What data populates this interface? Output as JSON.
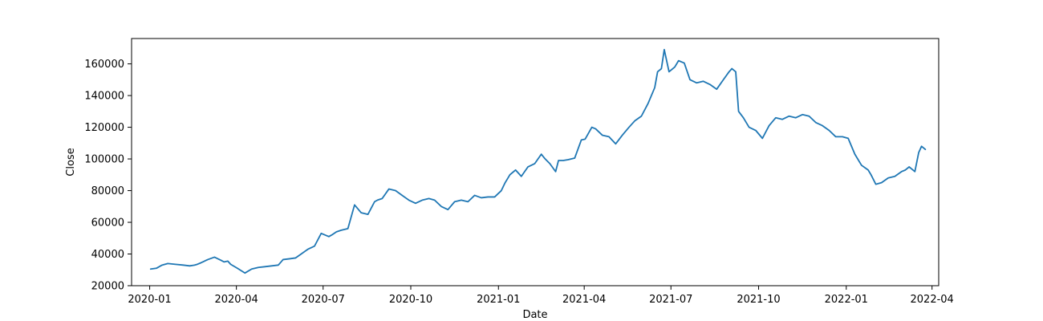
{
  "chart_data": {
    "type": "line",
    "title": "",
    "xlabel": "Date",
    "ylabel": "Close",
    "xlim": [
      "2019-12-13",
      "2022-04-08"
    ],
    "ylim": [
      20000,
      176000
    ],
    "grid": false,
    "legend": false,
    "colors": {
      "line": "#1f77b4",
      "axis": "#000000",
      "background": "#ffffff"
    },
    "x_ticks": [
      "2020-01",
      "2020-04",
      "2020-07",
      "2020-10",
      "2021-01",
      "2021-04",
      "2021-07",
      "2021-10",
      "2022-01",
      "2022-04"
    ],
    "y_ticks": [
      20000,
      40000,
      60000,
      80000,
      100000,
      120000,
      140000,
      160000
    ],
    "series": [
      {
        "x": [
          "2020-01-02",
          "2020-01-08",
          "2020-01-14",
          "2020-01-20",
          "2020-01-28",
          "2020-02-05",
          "2020-02-12",
          "2020-02-17",
          "2020-02-20",
          "2020-02-24",
          "2020-03-02",
          "2020-03-09",
          "2020-03-16",
          "2020-03-19",
          "2020-03-23",
          "2020-03-26",
          "2020-04-02",
          "2020-04-10",
          "2020-04-17",
          "2020-04-24",
          "2020-05-01",
          "2020-05-08",
          "2020-05-15",
          "2020-05-20",
          "2020-05-27",
          "2020-06-02",
          "2020-06-08",
          "2020-06-15",
          "2020-06-22",
          "2020-06-29",
          "2020-07-03",
          "2020-07-07",
          "2020-07-10",
          "2020-07-15",
          "2020-07-20",
          "2020-07-27",
          "2020-08-03",
          "2020-08-10",
          "2020-08-17",
          "2020-08-24",
          "2020-08-27",
          "2020-09-01",
          "2020-09-08",
          "2020-09-15",
          "2020-09-22",
          "2020-09-29",
          "2020-10-06",
          "2020-10-13",
          "2020-10-20",
          "2020-10-26",
          "2020-11-02",
          "2020-11-09",
          "2020-11-16",
          "2020-11-23",
          "2020-11-30",
          "2020-12-07",
          "2020-12-14",
          "2020-12-21",
          "2020-12-28",
          "2021-01-04",
          "2021-01-08",
          "2021-01-13",
          "2021-01-19",
          "2021-01-25",
          "2021-02-01",
          "2021-02-08",
          "2021-02-15",
          "2021-02-19",
          "2021-02-24",
          "2021-03-02",
          "2021-03-05",
          "2021-03-10",
          "2021-03-15",
          "2021-03-22",
          "2021-03-29",
          "2021-04-02",
          "2021-04-09",
          "2021-04-13",
          "2021-04-20",
          "2021-04-27",
          "2021-05-04",
          "2021-05-11",
          "2021-05-18",
          "2021-05-24",
          "2021-05-31",
          "2021-06-07",
          "2021-06-14",
          "2021-06-17",
          "2021-06-21",
          "2021-06-24",
          "2021-06-29",
          "2021-07-05",
          "2021-07-09",
          "2021-07-15",
          "2021-07-21",
          "2021-07-28",
          "2021-08-04",
          "2021-08-11",
          "2021-08-18",
          "2021-08-25",
          "2021-08-31",
          "2021-09-03",
          "2021-09-07",
          "2021-09-10",
          "2021-09-15",
          "2021-09-21",
          "2021-09-28",
          "2021-10-05",
          "2021-10-12",
          "2021-10-19",
          "2021-10-26",
          "2021-11-02",
          "2021-11-09",
          "2021-11-16",
          "2021-11-23",
          "2021-11-30",
          "2021-12-07",
          "2021-12-14",
          "2021-12-21",
          "2021-12-28",
          "2022-01-03",
          "2022-01-10",
          "2022-01-17",
          "2022-01-24",
          "2022-01-27",
          "2022-02-01",
          "2022-02-07",
          "2022-02-14",
          "2022-02-21",
          "2022-02-28",
          "2022-03-04",
          "2022-03-08",
          "2022-03-14",
          "2022-03-18",
          "2022-03-21",
          "2022-03-25"
        ],
        "y": [
          30500,
          31000,
          33000,
          34000,
          33500,
          33000,
          32500,
          33000,
          33500,
          34500,
          36500,
          38000,
          36000,
          35000,
          35500,
          33500,
          31000,
          28000,
          30500,
          31500,
          32000,
          32500,
          33000,
          36500,
          37000,
          37500,
          40000,
          43000,
          45000,
          53000,
          52000,
          51000,
          52000,
          54000,
          55000,
          56000,
          71000,
          66000,
          65000,
          73000,
          74000,
          75000,
          81000,
          80000,
          77000,
          74000,
          72000,
          74000,
          75000,
          74000,
          70000,
          68000,
          73000,
          74000,
          73000,
          77000,
          75500,
          76000,
          76000,
          80000,
          85000,
          90000,
          93000,
          89000,
          95000,
          97000,
          103000,
          100000,
          97000,
          92000,
          99000,
          99000,
          99500,
          100500,
          112000,
          112500,
          120000,
          119000,
          115000,
          114000,
          109500,
          115000,
          120000,
          124000,
          127000,
          135000,
          145000,
          155000,
          157000,
          169000,
          155000,
          158000,
          162000,
          160500,
          150000,
          148000,
          149000,
          147000,
          144000,
          150000,
          155000,
          157000,
          155000,
          130000,
          126000,
          120000,
          118000,
          113000,
          121000,
          126000,
          125000,
          127000,
          126000,
          128000,
          127000,
          123000,
          121000,
          118000,
          114000,
          114000,
          113000,
          103000,
          96000,
          93000,
          90000,
          84000,
          85000,
          88000,
          89000,
          92000,
          93000,
          95000,
          92000,
          104000,
          108000,
          106000
        ]
      }
    ]
  }
}
